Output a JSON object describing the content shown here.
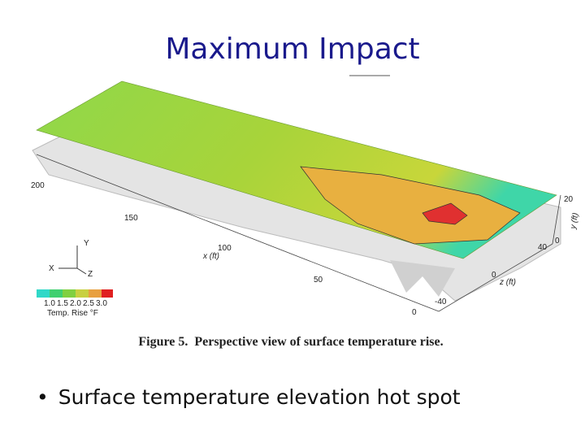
{
  "header": {
    "title": "Maximum Impact"
  },
  "figure": {
    "x_axis": {
      "label": "x (ft)",
      "ticks": [
        "200",
        "150",
        "100",
        "50",
        "0"
      ]
    },
    "y_axis": {
      "label": "y (ft)",
      "ticks": [
        "20",
        "0"
      ]
    },
    "z_axis": {
      "label": "z (ft)",
      "ticks": [
        "40",
        "0",
        "-40"
      ]
    },
    "triad": [
      "Y",
      "X",
      "Z"
    ],
    "legend": {
      "title": "Temp. Rise °F",
      "ticks": [
        "1.0",
        "1.5",
        "2.0",
        "2.5",
        "3.0"
      ]
    },
    "caption": "Figure 5.  Perspective view of surface temperature rise."
  },
  "bullets": [
    "Surface temperature elevation hot spot"
  ]
}
